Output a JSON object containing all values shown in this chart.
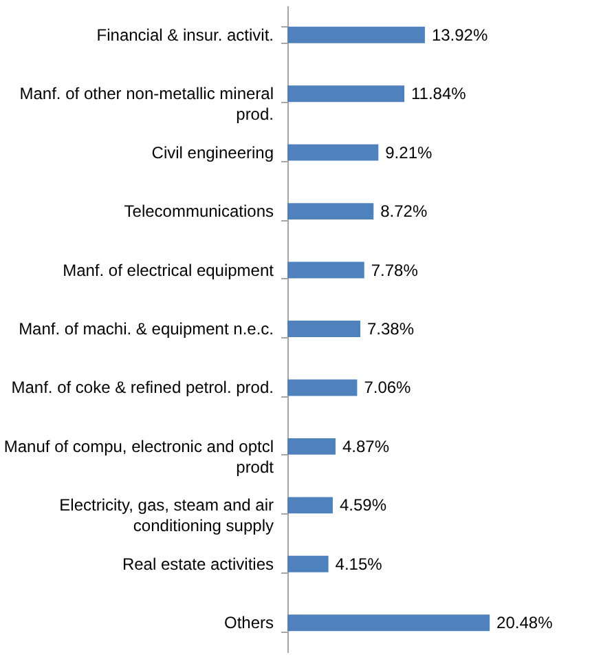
{
  "chart_data": {
    "type": "bar",
    "orientation": "horizontal",
    "color": "#4f81bd",
    "categories": [
      "Financial & insur. activit.",
      "Manf. of other non-metallic mineral prod.",
      "Civil engineering",
      "Telecommunications",
      "Manf. of electrical equipment",
      "Manf. of machi. & equipment n.e.c.",
      "Manf. of coke & refined petrol. prod.",
      "Manuf of compu, electronic and optcl prodt",
      "Electricity, gas, steam and air conditioning supply",
      "Real estate activities",
      "Others"
    ],
    "values": [
      13.92,
      11.84,
      9.21,
      8.72,
      7.78,
      7.38,
      7.06,
      4.87,
      4.59,
      4.15,
      20.48
    ],
    "value_labels": [
      "13.92%",
      "11.84%",
      "9.21%",
      "8.72%",
      "7.78%",
      "7.38%",
      "7.06%",
      "4.87%",
      "4.59%",
      "4.15%",
      "20.48%"
    ]
  }
}
